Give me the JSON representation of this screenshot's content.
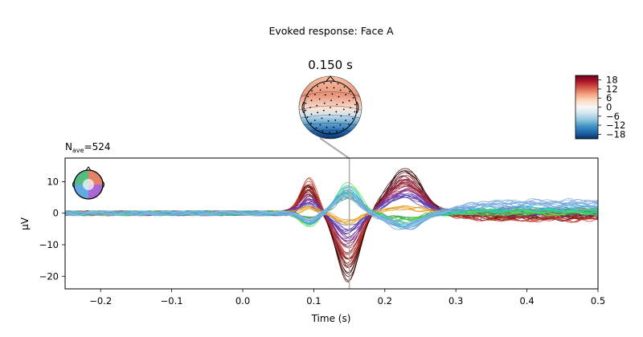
{
  "figure": {
    "suptitle": "Evoked response: Face A",
    "topomap_time_label": "0.150 s",
    "nave_label": "N",
    "nave_subscript": "ave",
    "nave_value": "=524"
  },
  "colorbar": {
    "ticks": [
      18,
      12,
      6,
      0,
      -6,
      -12,
      -18
    ],
    "tick_labels": [
      "18",
      "12",
      "6",
      "0",
      "−6",
      "−12",
      "−18"
    ],
    "range": [
      -21,
      21
    ],
    "colors": [
      "#053061",
      "#2166ac",
      "#4393c3",
      "#92c5de",
      "#d1e5f0",
      "#f7f7f7",
      "#fddbc7",
      "#f4a582",
      "#d6604d",
      "#b2182b",
      "#67001f"
    ]
  },
  "chart_data": {
    "type": "line",
    "title": "",
    "xlabel": "Time (s)",
    "ylabel": "µV",
    "xlim": [
      -0.25,
      0.5
    ],
    "ylim": [
      -24,
      17.5
    ],
    "xticks": [
      -0.2,
      -0.1,
      0.0,
      0.1,
      0.2,
      0.3,
      0.4,
      0.5
    ],
    "xtick_labels": [
      "−0.2",
      "−0.1",
      "0.0",
      "0.1",
      "0.2",
      "0.3",
      "0.4",
      "0.5"
    ],
    "yticks": [
      10,
      0,
      -10,
      -20
    ],
    "ytick_labels": [
      "10",
      "0",
      "−10",
      "−20"
    ],
    "marker_time": 0.15,
    "grid": false,
    "legend": "sensor-location inset top-left",
    "series_groups": [
      {
        "color": "#3a0000",
        "peak_90ms": 10,
        "trough_150ms": -22,
        "peak_230ms": 14.5,
        "late_level": -1.5
      },
      {
        "color": "#7a0f0f",
        "peak_90ms": 8,
        "trough_150ms": -19,
        "peak_230ms": 12.5,
        "late_level": -1.0
      },
      {
        "color": "#c0392b",
        "peak_90ms": 11,
        "trough_150ms": -16,
        "peak_230ms": 10,
        "late_level": -2.0
      },
      {
        "color": "#8e2c5e",
        "peak_90ms": 6,
        "trough_150ms": -12,
        "peak_230ms": 11,
        "late_level": -0.5
      },
      {
        "color": "#7030a0",
        "peak_90ms": 5,
        "trough_150ms": -9,
        "peak_230ms": 8,
        "late_level": 0.5
      },
      {
        "color": "#5b3fb0",
        "peak_90ms": 3,
        "trough_150ms": -6,
        "peak_230ms": 6,
        "late_level": 1.0
      },
      {
        "color": "#e8a020",
        "peak_90ms": 2,
        "trough_150ms": -3,
        "peak_230ms": 2,
        "late_level": 0.5
      },
      {
        "color": "#2f9e44",
        "peak_90ms": -2,
        "trough_150ms": 6,
        "peak_230ms": -2,
        "late_level": 0.0
      },
      {
        "color": "#55e055",
        "peak_90ms": -4,
        "trough_150ms": 9,
        "peak_230ms": -3,
        "late_level": 0.5
      },
      {
        "color": "#26c6c6",
        "peak_90ms": -3,
        "trough_150ms": 8,
        "peak_230ms": -4,
        "late_level": 1.5
      },
      {
        "color": "#5b9bd5",
        "peak_90ms": -3,
        "trough_150ms": 7,
        "peak_230ms": -5,
        "late_level": 3.0
      },
      {
        "color": "#8cb4e6",
        "peak_90ms": -2,
        "trough_150ms": 6,
        "peak_230ms": -4,
        "late_level": 3.5
      }
    ]
  }
}
